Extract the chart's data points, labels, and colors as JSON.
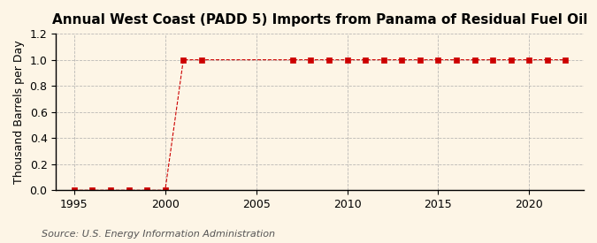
{
  "title": "Annual West Coast (PADD 5) Imports from Panama of Residual Fuel Oil",
  "ylabel": "Thousand Barrels per Day",
  "source": "Source: U.S. Energy Information Administration",
  "background_color": "#fdf5e6",
  "marker_color": "#cc0000",
  "line_color": "#cc0000",
  "years": [
    1995,
    1996,
    1997,
    1998,
    1999,
    2000,
    2001,
    2002,
    2007,
    2008,
    2009,
    2010,
    2011,
    2012,
    2013,
    2014,
    2015,
    2016,
    2017,
    2018,
    2019,
    2020,
    2021,
    2022
  ],
  "values": [
    0.0,
    0.0,
    0.0,
    0.0,
    0.0,
    0.0,
    1.0,
    1.0,
    1.0,
    1.0,
    1.0,
    1.0,
    1.0,
    1.0,
    1.0,
    1.0,
    1.0,
    1.0,
    1.0,
    1.0,
    1.0,
    1.0,
    1.0,
    1.0
  ],
  "xlim": [
    1994,
    2023
  ],
  "ylim": [
    0.0,
    1.2
  ],
  "yticks": [
    0.0,
    0.2,
    0.4,
    0.6,
    0.8,
    1.0,
    1.2
  ],
  "xticks": [
    1995,
    2000,
    2005,
    2010,
    2015,
    2020
  ],
  "grid_color": "#aaaaaa",
  "vgrid_years": [
    1995,
    2000,
    2005,
    2010,
    2015,
    2020
  ],
  "title_fontsize": 11,
  "label_fontsize": 9,
  "tick_fontsize": 9,
  "source_fontsize": 8
}
